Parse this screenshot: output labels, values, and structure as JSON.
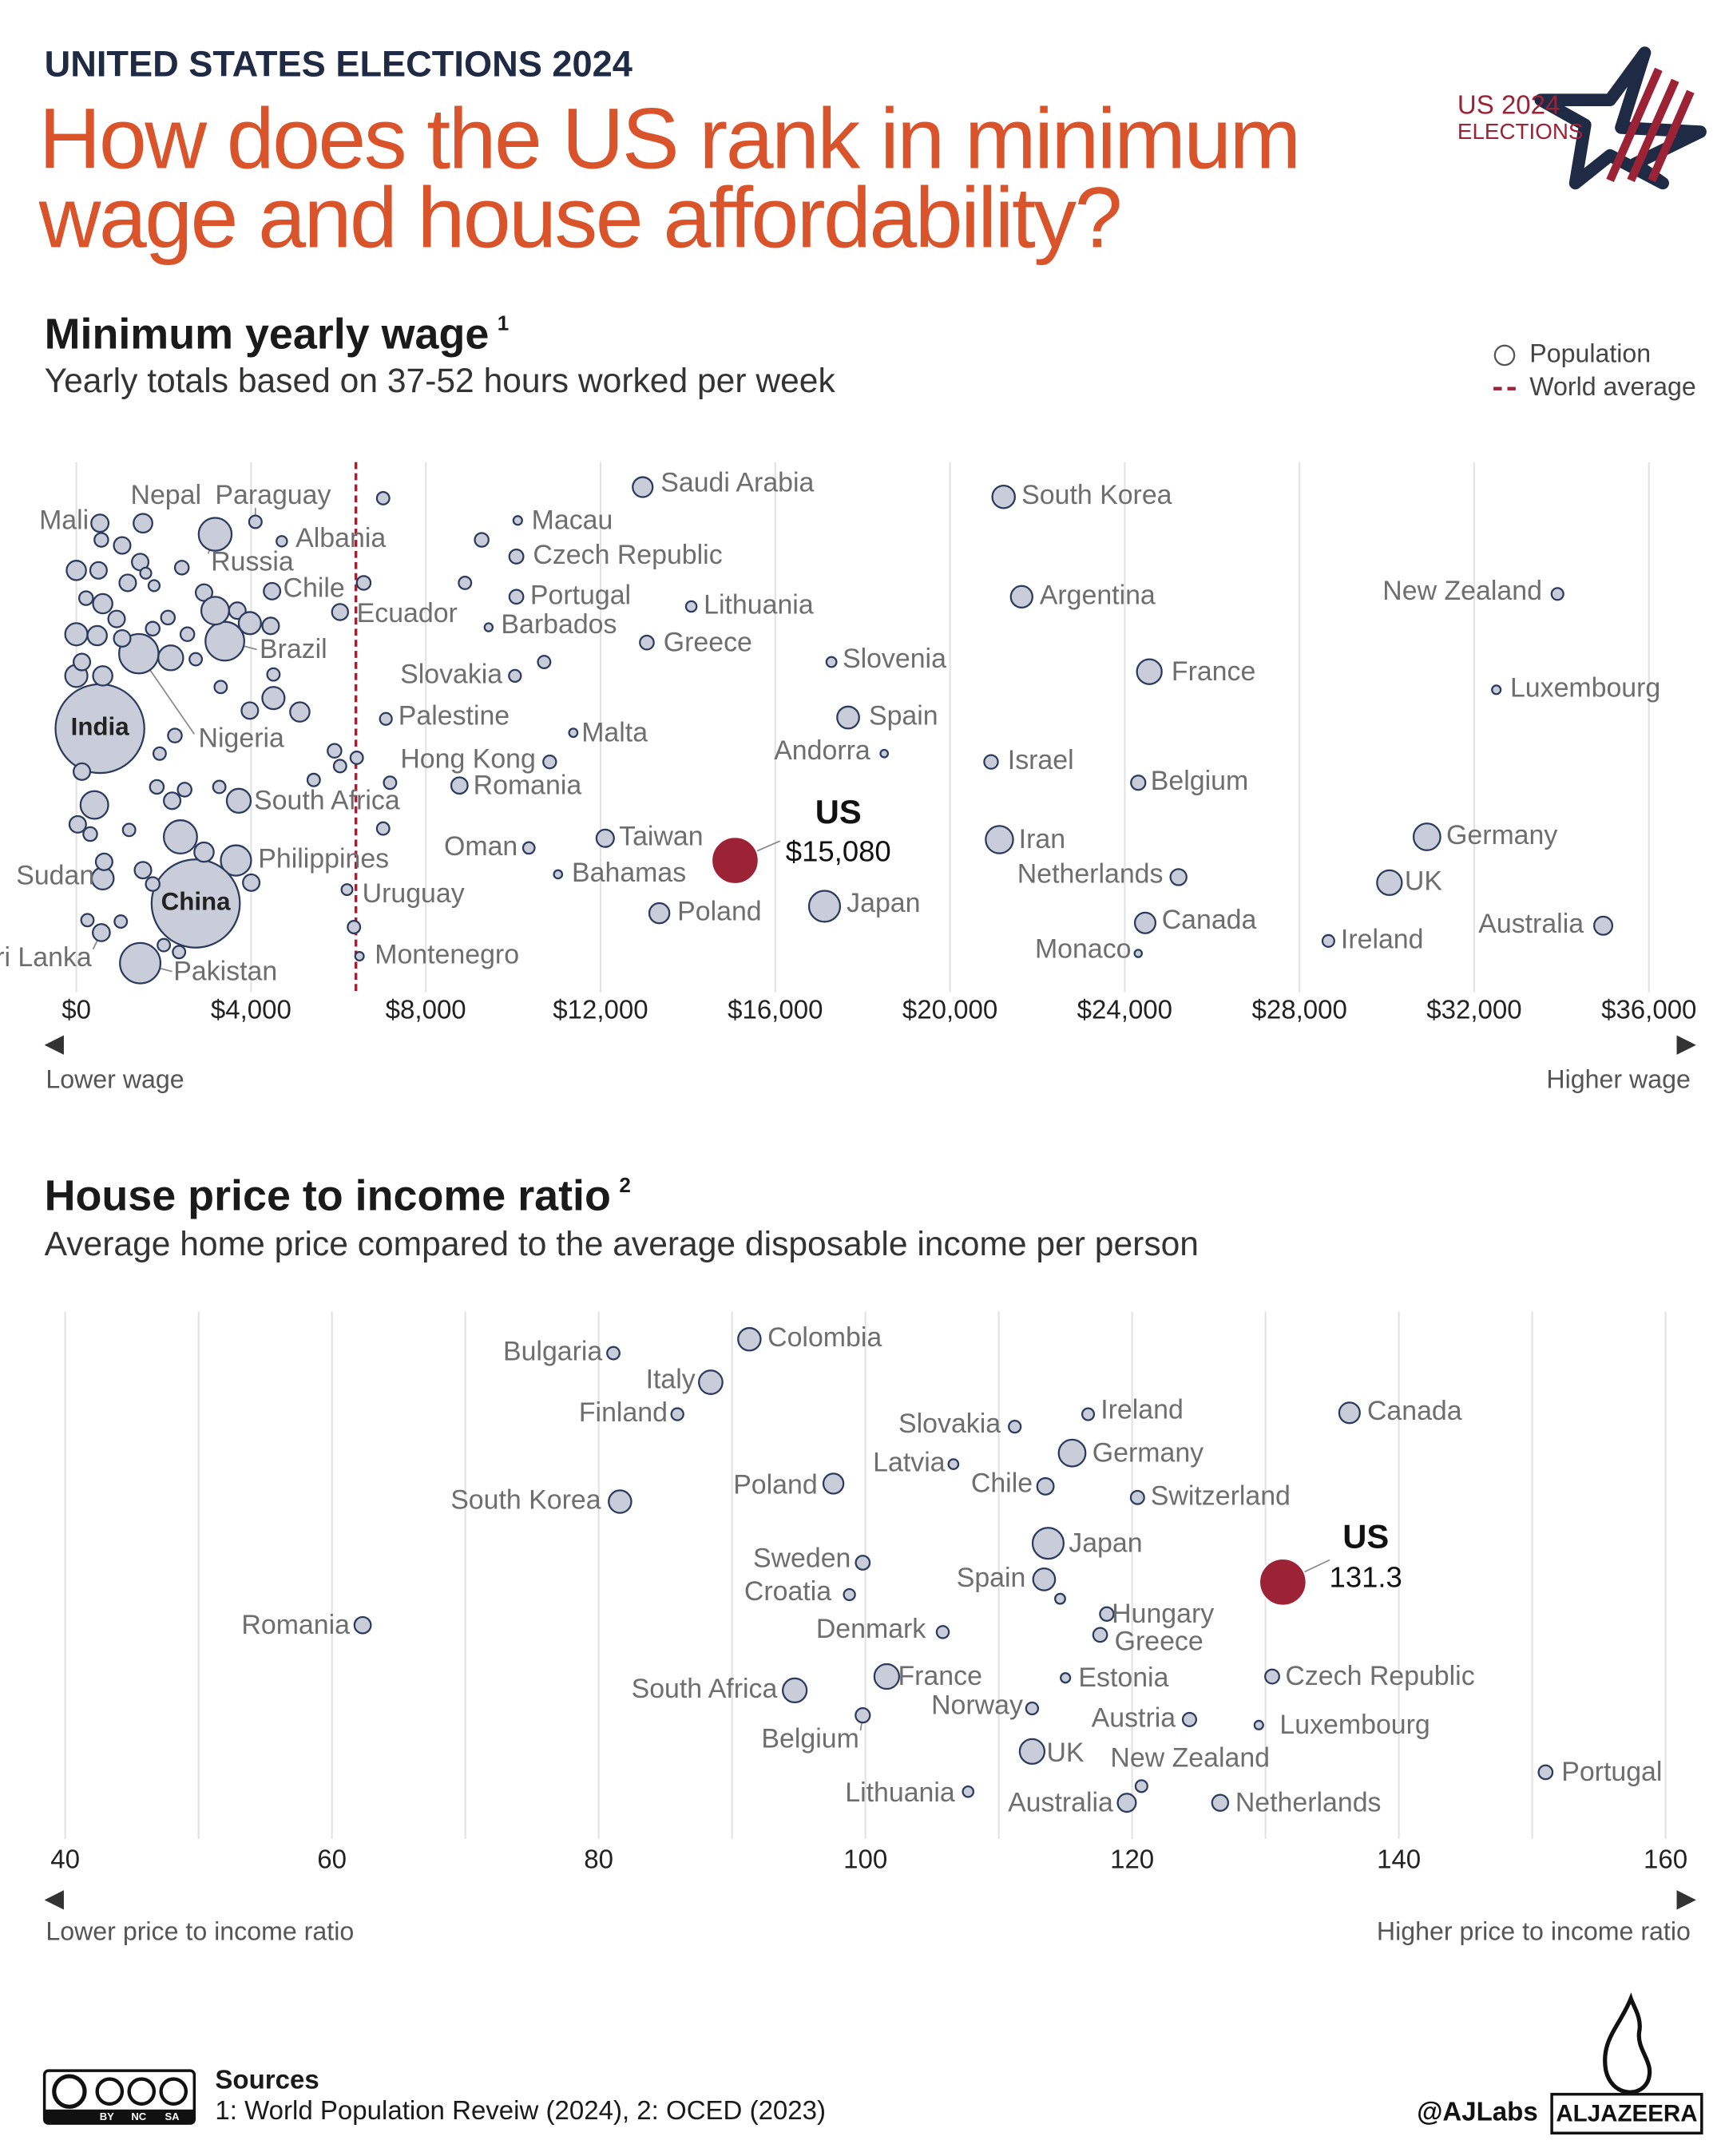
{
  "header": {
    "kicker": "UNITED STATES ELECTIONS 2024",
    "title": "How does the US rank in minimum wage and house affordability?",
    "logo": [
      "US 2024",
      "ELECTIONS"
    ]
  },
  "chart_data": [
    {
      "type": "bubble",
      "title": "Minimum yearly wage",
      "title_note": "1",
      "subtitle": "Yearly totals based on 37-52 hours worked per week",
      "size_name": "Population",
      "legend_position": "top-right",
      "grid": true,
      "color": "#c9cdd9",
      "edge_color": "#2c3a5c",
      "xlim": [
        0,
        36000
      ],
      "xticks": [
        {
          "value": 0,
          "label": "$0"
        },
        {
          "value": 4000,
          "label": "$4,000"
        },
        {
          "value": 8000,
          "label": "$8,000"
        },
        {
          "value": 12000,
          "label": "$12,000"
        },
        {
          "value": 16000,
          "label": "$16,000"
        },
        {
          "value": 20000,
          "label": "$20,000"
        },
        {
          "value": 24000,
          "label": "$24,000"
        },
        {
          "value": 28000,
          "label": "$28,000"
        },
        {
          "value": 32000,
          "label": "$32,000"
        },
        {
          "value": 36000,
          "label": "$36,000"
        }
      ],
      "reference_line": {
        "name": "World average",
        "value": 6400,
        "color": "#9b2335"
      },
      "axis_labels": {
        "low": "Lower wage",
        "high": "Higher wage"
      },
      "highlight": {
        "category": "US",
        "value": 15080,
        "value_label": "$15,080",
        "size": 335,
        "color": "#9b2335"
      },
      "categories": [
        "Saudi Arabia",
        "South Korea",
        "Nepal",
        "Paraguay",
        "Mali",
        "Macau",
        "Albania",
        "Russia",
        "Czech Republic",
        "Chile",
        "Portugal",
        "Lithuania",
        "Argentina",
        "New Zealand",
        "Ecuador",
        "Barbados",
        "Brazil",
        "Greece",
        "Slovenia",
        "Slovakia",
        "France",
        "Luxembourg",
        "India",
        "Nigeria",
        "Palestine",
        "Malta",
        "Spain",
        "Andorra",
        "Hong Kong",
        "Israel",
        "Romania",
        "Belgium",
        "South Africa",
        "Philippines",
        "Taiwan",
        "Oman",
        "Iran",
        "Germany",
        "Bahamas",
        "Netherlands",
        "UK",
        "Sudan",
        "China",
        "Uruguay",
        "Japan",
        "Poland",
        "Canada",
        "Australia",
        "Ireland",
        "Montenegro",
        "Monaco",
        "Sri Lanka",
        "Pakistan",
        null,
        null,
        null,
        null,
        null,
        null,
        null,
        null,
        null,
        null,
        null,
        null,
        null,
        null,
        null,
        null,
        null,
        null,
        null,
        null,
        null,
        null,
        null,
        null,
        null,
        null,
        null,
        null,
        null,
        null,
        null,
        null,
        null,
        null,
        null,
        null,
        null,
        null,
        null,
        null,
        null,
        null,
        null,
        null,
        null,
        null,
        null,
        null,
        null,
        null,
        null,
        null,
        null,
        null,
        null,
        null,
        null,
        null,
        null,
        null,
        null,
        null,
        null,
        null,
        null,
        null
      ],
      "values": [
        12965,
        21227,
        1525,
        4099,
        540,
        10105,
        4703,
        3178,
        10073,
        4480,
        10073,
        14077,
        21640,
        33906,
        6037,
        9438,
        3400,
        13060,
        17286,
        10041,
        24563,
        32507,
        540,
        1430,
        7086,
        11376,
        17668,
        18494,
        10836,
        20940,
        8770,
        24309,
        3718,
        3654,
        12107,
        10359,
        21131,
        30919,
        11027,
        25231,
        30060,
        604,
        2733,
        6196,
        17128,
        13346,
        24468,
        34954,
        28662,
        6482,
        24309,
        572,
        1462,
        7023,
        572,
        1049,
        1462,
        0,
        508,
        1176,
        2415,
        1589,
        1780,
        604,
        222,
        922,
        2097,
        2542,
        0,
        477,
        1049,
        1748,
        0,
        604,
        2161,
        2733,
        3305,
        4512,
        3972,
        5116,
        2256,
        1907,
        127,
        413,
        2383,
        2923,
        1843,
        2193,
        2479,
        3273,
        32,
        318,
        1208,
        636,
        1525,
        1748,
        4004,
        254,
        1017,
        2351,
        2002,
        5434,
        5910,
        6037,
        6419,
        7181,
        7023,
        10709,
        9279,
        8897,
        6578,
        6355,
        4512,
        3686,
        3972,
        4449,
        2923,
        3178,
        127
      ],
      "sizes": [
        36,
        52,
        30,
        6.9,
        23,
        0.7,
        2.8,
        144,
        10.9,
        19.6,
        10.4,
        2.9,
        46,
        5.2,
        18,
        0.28,
        216,
        10.4,
        2.1,
        5.4,
        68,
        0.66,
        1430,
        224,
        5.4,
        0.5,
        48,
        0.08,
        7.5,
        9.8,
        19,
        11.8,
        62,
        117,
        23.6,
        4.6,
        89,
        84,
        0.4,
        17.9,
        68,
        48,
        1410,
        3.4,
        124,
        37,
        40,
        27,
        5.2,
        0.6,
        0.04,
        22,
        240,
        6.6,
        10,
        20,
        20,
        33,
        20,
        20,
        10,
        3.7,
        3.7,
        33,
        10,
        20,
        10,
        10,
        50,
        33,
        20,
        10,
        50,
        33,
        69,
        6.6,
        6.6,
        50,
        20,
        33,
        10,
        6.6,
        20,
        92,
        148,
        33,
        10,
        20,
        10,
        6.6,
        20,
        10,
        6.6,
        20,
        20,
        10,
        20,
        6.6,
        6.6,
        6.6,
        6.6,
        6.6,
        10,
        6.6,
        6.6,
        6.6,
        6.6,
        6.6,
        10,
        6.6,
        10,
        6.6,
        6.6,
        20,
        50,
        20,
        20,
        92,
        20
      ]
    },
    {
      "type": "bubble",
      "title": "House price to income ratio",
      "title_note": "2",
      "subtitle": "Average home price compared to the average disposable income per person",
      "grid": true,
      "color": "#c9cdd9",
      "edge_color": "#2c3a5c",
      "xlim": [
        40,
        160
      ],
      "xticks": [
        40,
        60,
        80,
        100,
        120,
        140,
        160
      ],
      "minor_xticks": [
        50,
        70,
        90,
        110,
        130,
        150
      ],
      "axis_labels": {
        "low": "Lower price to income ratio",
        "high": "Higher price to income ratio"
      },
      "highlight": {
        "category": "US",
        "value": 131.3,
        "size": 335,
        "color": "#9b2335"
      },
      "categories": [
        "Bulgaria",
        "Colombia",
        "Italy",
        "Finland",
        "Slovakia",
        "Ireland",
        "Canada",
        "Latvia",
        "Germany",
        "Chile",
        "Poland",
        "South Korea",
        "Switzerland",
        "Japan",
        "Sweden",
        "Croatia",
        "Spain",
        null,
        "Hungary",
        "Greece",
        "Denmark",
        "Romania",
        "France",
        "Estonia",
        "Czech Republic",
        "South Africa",
        "Norway",
        "Austria",
        "Luxembourg",
        "Belgium",
        "UK",
        "New Zealand",
        "Portugal",
        "Lithuania",
        "Australia",
        "Netherlands"
      ],
      "values": [
        81.1,
        91.3,
        88.4,
        85.9,
        111.2,
        116.7,
        136.3,
        106.6,
        115.5,
        113.5,
        97.6,
        81.6,
        120.4,
        113.7,
        99.8,
        98.8,
        113.4,
        114.6,
        118.1,
        117.6,
        105.8,
        62.3,
        101.6,
        115.0,
        130.5,
        94.7,
        112.5,
        124.3,
        129.5,
        99.8,
        112.5,
        120.7,
        151.0,
        107.7,
        119.6,
        126.6
      ],
      "sizes": [
        6.5,
        52,
        59,
        5.6,
        5.4,
        5.2,
        40,
        1.9,
        84,
        19.6,
        37,
        52,
        8.8,
        124,
        10.5,
        3.9,
        48,
        2.1,
        9.6,
        10.4,
        5.9,
        19,
        68,
        1.4,
        10.9,
        62,
        5.5,
        9.1,
        0.66,
        11.8,
        68,
        5.2,
        10.4,
        2.9,
        27,
        17.9
      ]
    }
  ],
  "footer": {
    "sources_title": "Sources",
    "sources": "1: World Population Reveiw (2024), 2: OCED (2023)",
    "license": [
      "BY",
      "NC",
      "SA"
    ],
    "handle": "@AJLabs",
    "brand": "ALJAZEERA"
  }
}
